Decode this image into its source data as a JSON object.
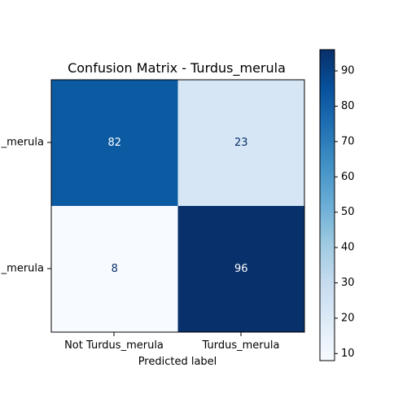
{
  "chart_data": {
    "type": "heatmap",
    "title": "Confusion Matrix - Turdus_merula",
    "xlabel": "Predicted label",
    "ylabel": "",
    "x_categories": [
      "Not Turdus_merula",
      "Turdus_merula"
    ],
    "y_categories": [
      "Not Turdus_merula",
      "Turdus_merula"
    ],
    "y_tick_labels_visible": [
      "_merula",
      "_merula"
    ],
    "matrix": [
      [
        82,
        23
      ],
      [
        8,
        96
      ]
    ],
    "colormap": "Blues",
    "colorbar": {
      "vmin": 8,
      "vmax": 96,
      "ticks": [
        10,
        20,
        30,
        40,
        50,
        60,
        70,
        80,
        90
      ],
      "tick_labels": [
        "10",
        "20",
        "30",
        "40",
        "50",
        "60",
        "70",
        "80",
        "90"
      ]
    },
    "colors": {
      "cell_82": "#0b5aa2",
      "cell_23": "#d6e6f4",
      "cell_8": "#f7fbff",
      "cell_96": "#08306b",
      "text_on_dark": "#ffffff",
      "text_on_light": "#08306b"
    }
  }
}
